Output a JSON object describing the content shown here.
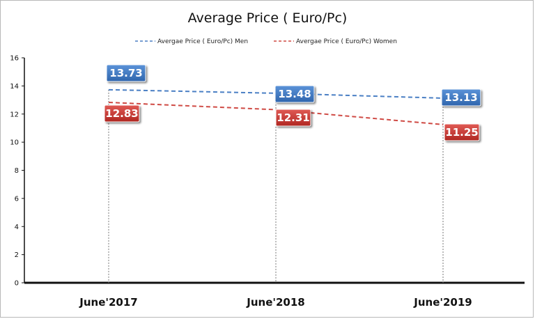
{
  "chart_data": {
    "type": "line",
    "title": "Average Price ( Euro/Pc)",
    "categories": [
      "June'2017",
      "June'2018",
      "June'2019"
    ],
    "ylim": [
      0,
      16
    ],
    "yticks": [
      0,
      2,
      4,
      6,
      8,
      10,
      12,
      14,
      16
    ],
    "grid": false,
    "legend": "top",
    "series": [
      {
        "name": "Avergae Price ( Euro/Pc) Men",
        "values": [
          13.73,
          13.48,
          13.13
        ],
        "labels": [
          "13.73",
          "13.48",
          "13.13"
        ],
        "color": "#4a7fc4",
        "label_color": "#3a73c0"
      },
      {
        "name": "Avergae Price ( Euro/Pc) Women",
        "values": [
          12.83,
          12.31,
          11.25
        ],
        "labels": [
          "12.83",
          "12.31",
          "11.25"
        ],
        "color": "#cf4a44",
        "label_color": "#c9302c"
      }
    ]
  }
}
